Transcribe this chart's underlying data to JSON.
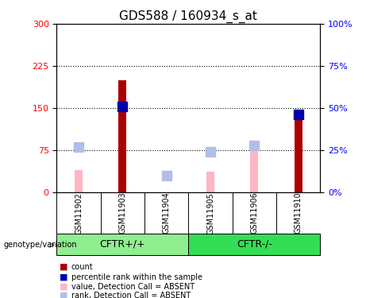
{
  "title": "GDS588 / 160934_s_at",
  "samples": [
    "GSM11902",
    "GSM11903",
    "GSM11904",
    "GSM11905",
    "GSM11906",
    "GSM11910"
  ],
  "count_values": [
    0,
    200,
    0,
    0,
    0,
    135
  ],
  "rank_values": [
    0,
    51,
    0,
    0,
    0,
    46
  ],
  "absent_value_values": [
    40,
    0,
    0,
    37,
    75,
    0
  ],
  "absent_rank_values": [
    27,
    0,
    10,
    24,
    28,
    0
  ],
  "ylim_left": [
    0,
    300
  ],
  "ylim_right": [
    0,
    100
  ],
  "yticks_left": [
    0,
    75,
    150,
    225,
    300
  ],
  "yticks_right": [
    0,
    25,
    50,
    75,
    100
  ],
  "count_color": "#AA0000",
  "rank_color": "#0000AA",
  "absent_value_color": "#FFB6C1",
  "absent_rank_color": "#B0BEE8",
  "grid_color": "black",
  "legend_labels": [
    "count",
    "percentile rank within the sample",
    "value, Detection Call = ABSENT",
    "rank, Detection Call = ABSENT"
  ],
  "legend_colors": [
    "#AA0000",
    "#0000AA",
    "#FFB6C1",
    "#B0BEE8"
  ],
  "xlabel_area_color": "#C8C8C8",
  "group1_color": "#90EE90",
  "group2_color": "#33DD55",
  "group_label_fontsize": 9,
  "title_fontsize": 11,
  "absent_bar_width": 0.18,
  "count_bar_width": 0.18,
  "rank_marker_size": 80
}
